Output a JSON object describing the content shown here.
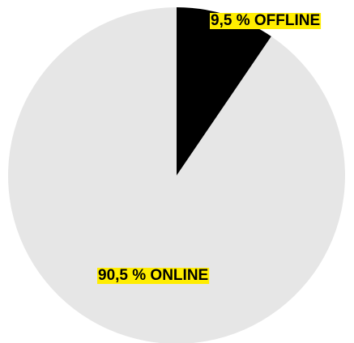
{
  "chart_data": {
    "type": "pie",
    "start_angle_deg": 0,
    "direction": "clockwise",
    "slices": [
      {
        "label": "9,5 % OFFLINE",
        "value": 9.5,
        "color": "#000000"
      },
      {
        "label": "90,5 % ONLINE",
        "value": 90.5,
        "color": "#e6e6e6"
      }
    ],
    "label_highlight_color": "#ffed00"
  }
}
